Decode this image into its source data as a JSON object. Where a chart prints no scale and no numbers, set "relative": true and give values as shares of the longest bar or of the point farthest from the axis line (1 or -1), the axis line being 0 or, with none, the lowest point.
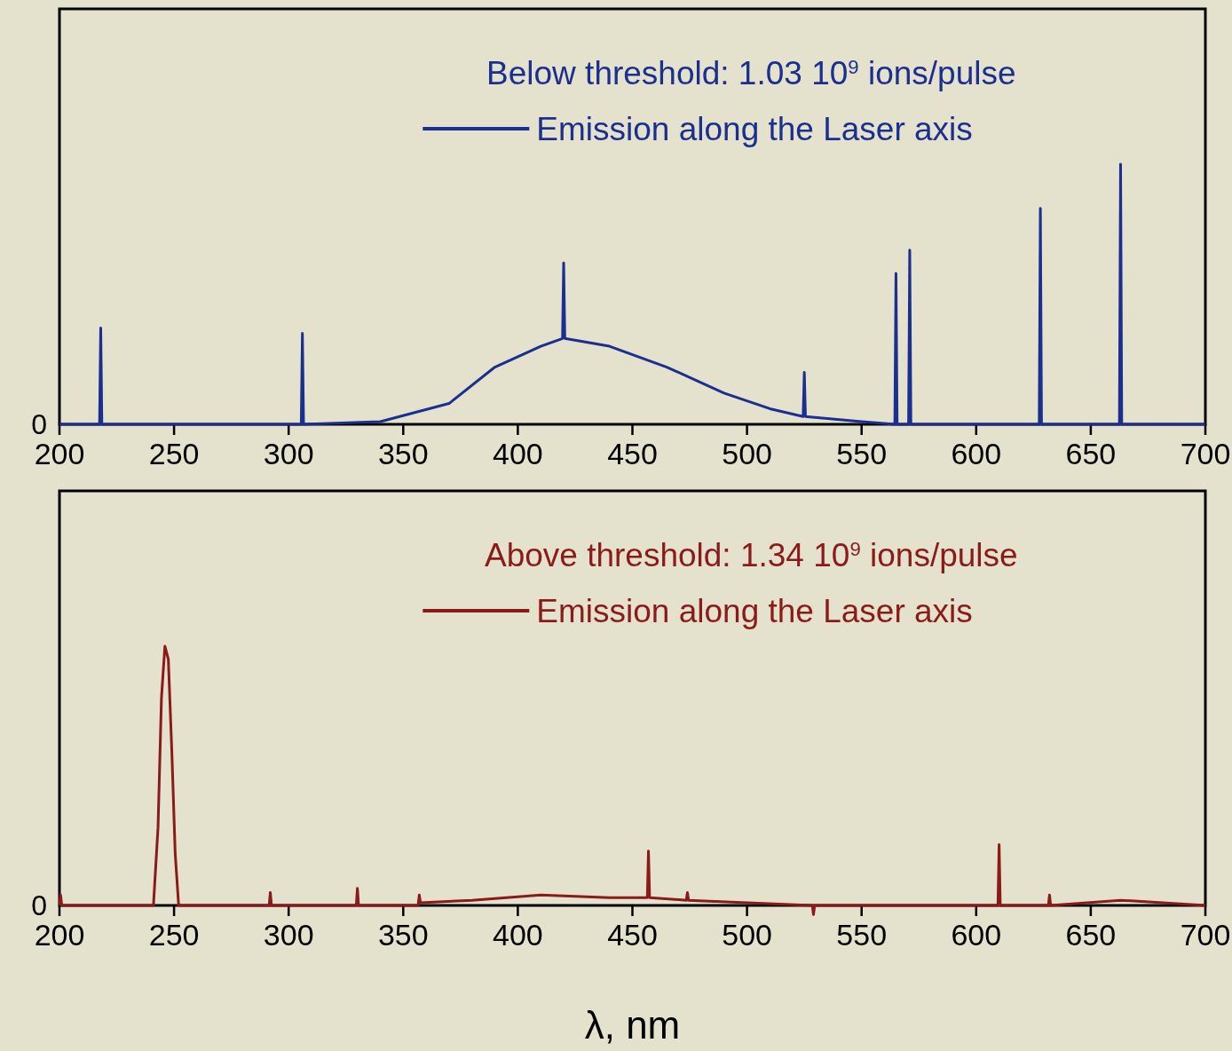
{
  "chart_data": [
    {
      "type": "line",
      "relative": true,
      "legend": "top right",
      "legend_title": "Below threshold: 1.03 10$^{9}$ ions/pulse",
      "annotations": [
        "0"
      ],
      "xlim": [
        200,
        700
      ],
      "xticks": [
        200,
        250,
        300,
        350,
        400,
        450,
        500,
        550,
        600,
        650,
        700
      ],
      "series": [
        {
          "name": "Emission along the Laser axis",
          "color": "#1a2f8f",
          "x": [
            200,
            215,
            217.5,
            218,
            218.5,
            300,
            305.5,
            306,
            306.5,
            340,
            370,
            390,
            410,
            419.5,
            420,
            420.5,
            440,
            465,
            490,
            510,
            524.5,
            525,
            525.5,
            550,
            564.5,
            565,
            565.5,
            570.5,
            571,
            571.5,
            620,
            627.5,
            628,
            628.5,
            662.5,
            663,
            663.5,
            700
          ],
          "values": [
            0,
            0,
            0,
            0.37,
            0,
            0,
            0,
            0.35,
            0,
            0.01,
            0.08,
            0.22,
            0.3,
            0.33,
            0.62,
            0.33,
            0.3,
            0.22,
            0.12,
            0.06,
            0.03,
            0.2,
            0.03,
            0.01,
            0,
            0.58,
            0,
            0,
            0.67,
            0,
            0,
            0,
            0.83,
            0,
            0,
            1,
            0,
            0
          ]
        }
      ]
    },
    {
      "type": "line",
      "relative": true,
      "legend": "top right",
      "legend_title": "Above threshold: 1.34 10$^{9}$ ions/pulse",
      "xlabel": "λ, nm",
      "annotations": [
        "0"
      ],
      "xlim": [
        200,
        700
      ],
      "xticks": [
        200,
        250,
        300,
        350,
        400,
        450,
        500,
        550,
        600,
        650,
        700
      ],
      "series": [
        {
          "name": "Emission along the Laser axis",
          "color": "#8b1a1a",
          "x": [
            200,
            200.5,
            201,
            241,
            243,
            244.5,
            246,
            247.5,
            249,
            250.5,
            252,
            291.5,
            292,
            292.5,
            329.5,
            330,
            330.5,
            356.5,
            357,
            357.5,
            380,
            410,
            440,
            456.5,
            457,
            457.5,
            473.5,
            474,
            474.5,
            500,
            528.5,
            529,
            529.5,
            609.5,
            610,
            610.5,
            631.5,
            632,
            632.5,
            663,
            700
          ],
          "values": [
            0,
            0.04,
            0,
            0,
            0.3,
            0.8,
            1,
            0.95,
            0.6,
            0.2,
            0,
            0,
            0.05,
            0,
            0,
            0.066,
            0,
            0,
            0.04,
            0.01,
            0.02,
            0.04,
            0.03,
            0.03,
            0.21,
            0.03,
            0.02,
            0.05,
            0.02,
            0.01,
            0,
            -0.035,
            0,
            0,
            0.235,
            0,
            0,
            0.04,
            0,
            0.02,
            0
          ]
        }
      ]
    }
  ]
}
